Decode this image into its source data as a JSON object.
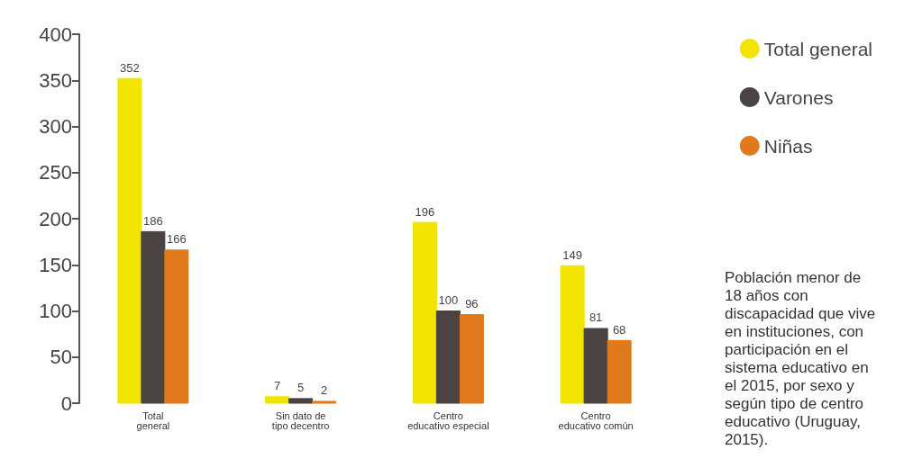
{
  "chart_data": {
    "type": "bar",
    "categories": [
      "Total\ngeneral",
      "Sin dato de\ntipo decentro",
      "Centro\neducativo especial",
      "Centro\neducativo común"
    ],
    "series": [
      {
        "name": "Total general",
        "color": "#f0e400",
        "values": [
          352,
          7,
          196,
          149
        ]
      },
      {
        "name": "Varones",
        "color": "#4b4242",
        "values": [
          186,
          5,
          100,
          81
        ]
      },
      {
        "name": "Niñas",
        "color": "#e07a1c",
        "values": [
          166,
          2,
          96,
          68
        ]
      }
    ],
    "ylim": [
      0,
      400
    ],
    "yticks": [
      0,
      50,
      100,
      150,
      200,
      250,
      300,
      350,
      400
    ],
    "data_labels": true,
    "grid": false,
    "legend": "top right",
    "annotations": [
      "Población menor de 18 años con discapacidad que vive en instituciones, con participación en el sistema educativo en el 2015, por sexo y según tipo de centro educativo (Uruguay, 2015)."
    ]
  }
}
